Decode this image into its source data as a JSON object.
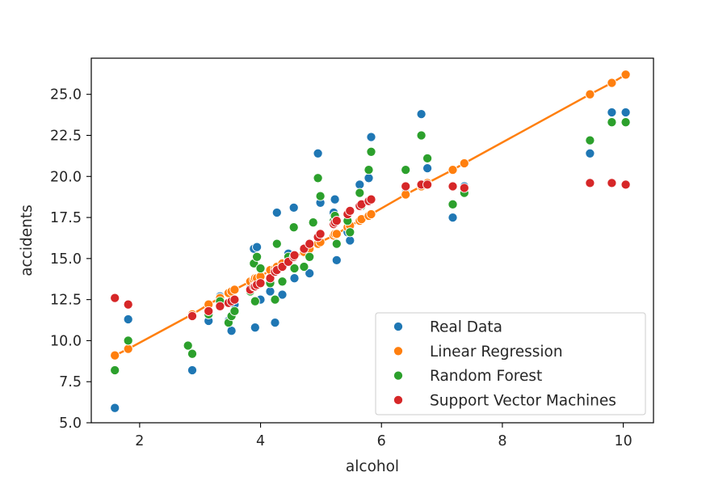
{
  "chart_data": {
    "type": "scatter",
    "xlabel": "alcohol",
    "ylabel": "accidents",
    "xlim": [
      1.2,
      10.5
    ],
    "ylim": [
      5.0,
      27.2
    ],
    "xticks": [
      2,
      4,
      6,
      8,
      10
    ],
    "yticks": [
      5.0,
      7.5,
      10.0,
      12.5,
      15.0,
      17.5,
      20.0,
      22.5,
      25.0
    ],
    "ytick_labels": [
      "5.0",
      "7.5",
      "10.0",
      "12.5",
      "15.0",
      "17.5",
      "20.0",
      "22.5",
      "25.0"
    ],
    "legend_position": "lower-right",
    "grid": false,
    "series": [
      {
        "name": "Real Data",
        "color": "#1f77b4",
        "points": [
          [
            1.59,
            5.9
          ],
          [
            1.81,
            11.3
          ],
          [
            2.87,
            8.2
          ],
          [
            3.14,
            11.2
          ],
          [
            3.33,
            12.7
          ],
          [
            3.47,
            11.2
          ],
          [
            3.52,
            10.6
          ],
          [
            3.57,
            12.2
          ],
          [
            3.83,
            13.2
          ],
          [
            3.89,
            15.6
          ],
          [
            3.91,
            10.8
          ],
          [
            3.94,
            15.7
          ],
          [
            4.0,
            12.5
          ],
          [
            4.16,
            13.0
          ],
          [
            4.24,
            11.1
          ],
          [
            4.27,
            17.8
          ],
          [
            4.36,
            12.8
          ],
          [
            4.46,
            15.3
          ],
          [
            4.55,
            18.1
          ],
          [
            4.56,
            13.8
          ],
          [
            4.72,
            14.5
          ],
          [
            4.81,
            14.1
          ],
          [
            4.95,
            21.4
          ],
          [
            4.99,
            18.4
          ],
          [
            5.21,
            17.8
          ],
          [
            5.23,
            18.6
          ],
          [
            5.26,
            14.9
          ],
          [
            5.44,
            16.6
          ],
          [
            5.48,
            16.1
          ],
          [
            5.64,
            19.5
          ],
          [
            5.67,
            18.3
          ],
          [
            5.79,
            19.9
          ],
          [
            5.83,
            22.4
          ],
          [
            6.4,
            19.0
          ],
          [
            6.66,
            23.8
          ],
          [
            6.76,
            20.5
          ],
          [
            7.18,
            17.5
          ],
          [
            7.37,
            19.4
          ],
          [
            9.45,
            21.4
          ],
          [
            9.81,
            23.9
          ],
          [
            10.04,
            23.9
          ]
        ]
      },
      {
        "name": "Linear Regression",
        "color": "#ff7f0e",
        "line": true,
        "points": [
          [
            1.59,
            9.1
          ],
          [
            1.81,
            9.5
          ],
          [
            2.87,
            11.6
          ],
          [
            3.14,
            12.2
          ],
          [
            3.33,
            12.6
          ],
          [
            3.47,
            12.9
          ],
          [
            3.52,
            13.0
          ],
          [
            3.57,
            13.1
          ],
          [
            3.83,
            13.6
          ],
          [
            3.89,
            13.7
          ],
          [
            3.91,
            13.8
          ],
          [
            3.94,
            13.8
          ],
          [
            4.0,
            13.9
          ],
          [
            4.16,
            14.3
          ],
          [
            4.24,
            14.4
          ],
          [
            4.27,
            14.5
          ],
          [
            4.36,
            14.7
          ],
          [
            4.46,
            14.9
          ],
          [
            4.55,
            15.1
          ],
          [
            4.56,
            15.1
          ],
          [
            4.72,
            15.4
          ],
          [
            4.81,
            15.6
          ],
          [
            4.95,
            15.9
          ],
          [
            4.99,
            16.0
          ],
          [
            5.21,
            16.4
          ],
          [
            5.23,
            16.5
          ],
          [
            5.26,
            16.5
          ],
          [
            5.44,
            16.9
          ],
          [
            5.48,
            17.0
          ],
          [
            5.64,
            17.3
          ],
          [
            5.67,
            17.4
          ],
          [
            5.79,
            17.6
          ],
          [
            5.83,
            17.7
          ],
          [
            6.4,
            18.9
          ],
          [
            6.66,
            19.4
          ],
          [
            6.76,
            19.6
          ],
          [
            7.18,
            20.4
          ],
          [
            7.37,
            20.8
          ],
          [
            9.45,
            25.0
          ],
          [
            9.81,
            25.7
          ],
          [
            10.04,
            26.2
          ]
        ]
      },
      {
        "name": "Random Forest",
        "color": "#2ca02c",
        "points": [
          [
            1.59,
            8.2
          ],
          [
            1.81,
            10.0
          ],
          [
            2.8,
            9.7
          ],
          [
            2.87,
            9.2
          ],
          [
            3.14,
            11.6
          ],
          [
            3.33,
            12.4
          ],
          [
            3.47,
            11.1
          ],
          [
            3.52,
            11.5
          ],
          [
            3.57,
            11.8
          ],
          [
            3.83,
            13.0
          ],
          [
            3.89,
            14.7
          ],
          [
            3.91,
            12.4
          ],
          [
            3.94,
            15.1
          ],
          [
            4.0,
            14.4
          ],
          [
            4.16,
            13.5
          ],
          [
            4.24,
            12.5
          ],
          [
            4.27,
            15.9
          ],
          [
            4.36,
            13.6
          ],
          [
            4.46,
            15.1
          ],
          [
            4.55,
            16.9
          ],
          [
            4.56,
            14.4
          ],
          [
            4.72,
            14.5
          ],
          [
            4.81,
            15.1
          ],
          [
            4.87,
            17.2
          ],
          [
            4.95,
            19.9
          ],
          [
            4.99,
            18.8
          ],
          [
            5.21,
            17.3
          ],
          [
            5.23,
            17.6
          ],
          [
            5.26,
            15.9
          ],
          [
            5.44,
            17.3
          ],
          [
            5.48,
            16.6
          ],
          [
            5.64,
            19.0
          ],
          [
            5.67,
            18.2
          ],
          [
            5.79,
            20.4
          ],
          [
            5.83,
            21.5
          ],
          [
            6.4,
            20.4
          ],
          [
            6.66,
            22.5
          ],
          [
            6.76,
            21.1
          ],
          [
            7.18,
            18.3
          ],
          [
            7.37,
            19.0
          ],
          [
            9.45,
            22.2
          ],
          [
            9.81,
            23.3
          ],
          [
            10.04,
            23.3
          ]
        ]
      },
      {
        "name": "Support Vector Machines",
        "color": "#d62728",
        "points": [
          [
            1.59,
            12.6
          ],
          [
            1.81,
            12.2
          ],
          [
            2.87,
            11.5
          ],
          [
            3.14,
            11.8
          ],
          [
            3.33,
            12.1
          ],
          [
            3.47,
            12.3
          ],
          [
            3.52,
            12.4
          ],
          [
            3.57,
            12.5
          ],
          [
            3.83,
            13.1
          ],
          [
            3.89,
            13.3
          ],
          [
            3.91,
            13.3
          ],
          [
            3.94,
            13.4
          ],
          [
            4.0,
            13.5
          ],
          [
            4.16,
            13.8
          ],
          [
            4.24,
            14.2
          ],
          [
            4.27,
            14.3
          ],
          [
            4.36,
            14.5
          ],
          [
            4.46,
            14.8
          ],
          [
            4.55,
            15.1
          ],
          [
            4.56,
            15.2
          ],
          [
            4.72,
            15.6
          ],
          [
            4.81,
            15.9
          ],
          [
            4.95,
            16.3
          ],
          [
            4.99,
            16.5
          ],
          [
            5.21,
            17.1
          ],
          [
            5.23,
            17.2
          ],
          [
            5.26,
            17.3
          ],
          [
            5.44,
            17.7
          ],
          [
            5.48,
            17.9
          ],
          [
            5.64,
            18.2
          ],
          [
            5.67,
            18.3
          ],
          [
            5.79,
            18.5
          ],
          [
            5.83,
            18.6
          ],
          [
            6.4,
            19.4
          ],
          [
            6.66,
            19.5
          ],
          [
            6.76,
            19.5
          ],
          [
            7.18,
            19.4
          ],
          [
            7.37,
            19.3
          ],
          [
            9.45,
            19.6
          ],
          [
            9.81,
            19.6
          ],
          [
            10.04,
            19.5
          ]
        ]
      }
    ]
  }
}
